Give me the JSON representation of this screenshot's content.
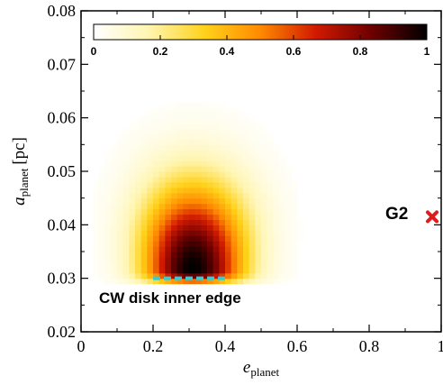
{
  "chart_data": {
    "type": "heatmap",
    "xlabel": {
      "main": "e",
      "sub": "planet"
    },
    "ylabel": {
      "main": "a",
      "sub": "planet",
      "unit": "[pc]"
    },
    "xlim": [
      0,
      1
    ],
    "ylim": [
      0.02,
      0.08
    ],
    "x_ticks": [
      "0",
      "0.2",
      "0.4",
      "0.6",
      "0.8",
      "1"
    ],
    "y_ticks": [
      "0.02",
      "0.03",
      "0.04",
      "0.05",
      "0.06",
      "0.07",
      "0.08"
    ],
    "colorbar": {
      "orientation": "horizontal",
      "placement": "top",
      "range": [
        0,
        1
      ],
      "ticks": [
        "0",
        "0.2",
        "0.4",
        "0.6",
        "0.8",
        "1"
      ],
      "colormap": "afmhot_r",
      "colors": [
        "#ffffff",
        "#fff5b0",
        "#ffd21a",
        "#ff8a00",
        "#d11a00",
        "#6e0000",
        "#000000"
      ]
    },
    "density": {
      "peak": {
        "e": 0.31,
        "a": 0.0315
      },
      "sigma_e_low": 0.095,
      "sigma_e_high": 0.1,
      "sigma_a_low": 0.0018,
      "sigma_a_high": 0.011,
      "lower_edge_a": 0.0295
    },
    "annotations": {
      "disk_edge": {
        "label": "CW disk inner edge",
        "e_range": [
          0.2,
          0.4
        ],
        "a": 0.03,
        "color": "#2ad1dd"
      },
      "g2": {
        "label": "G2",
        "e": 0.975,
        "a": 0.0415,
        "marker_color": "#e01b1b"
      }
    }
  }
}
